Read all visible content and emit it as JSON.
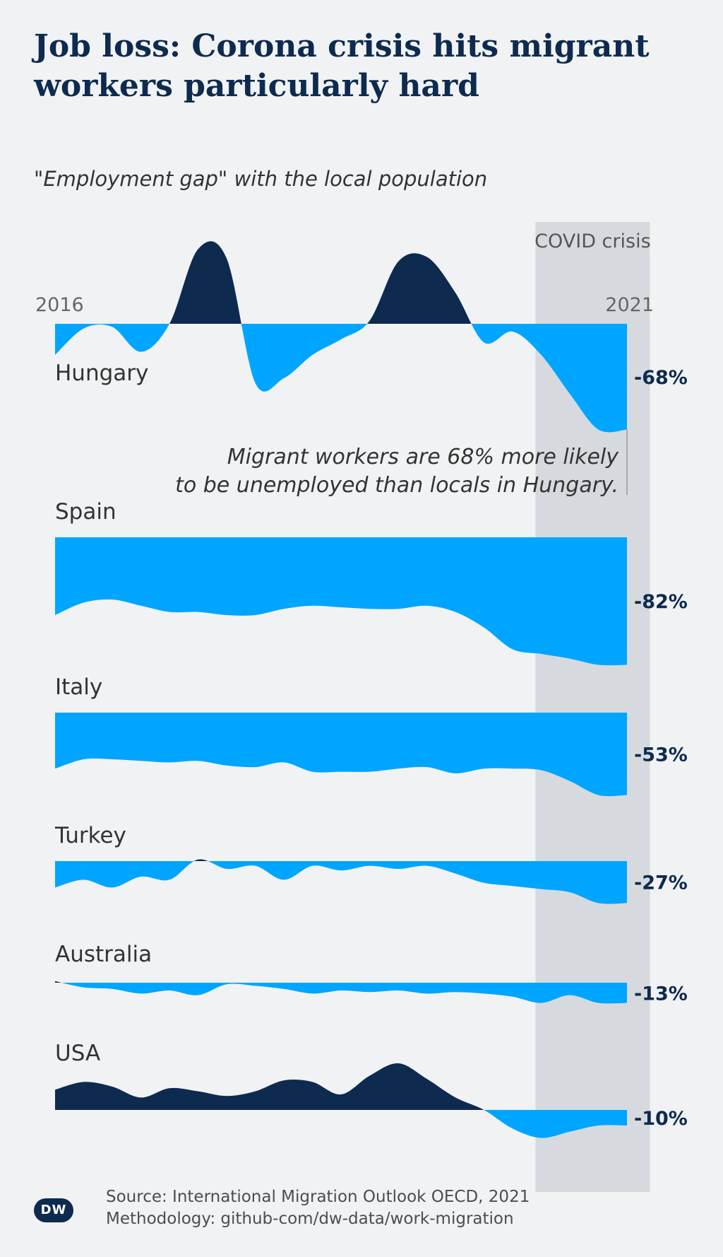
{
  "header": {
    "title": "Job loss: Corona crisis hits migrant workers particularly hard",
    "subtitle": "\"Employment gap\" with the local population"
  },
  "footer": {
    "source": "Source: International Migration Outlook OECD, 2021",
    "methodology": "Methodology: github-com/dw-data/work-migration",
    "logo_text": "DW"
  },
  "colors": {
    "negative": "#00a5ff",
    "positive": "#0e2a4f",
    "covid_band": "#d6dade",
    "background": "#f0f2f4"
  },
  "chart_data": {
    "type": "area",
    "x_start_label": "2016",
    "x_end_label": "2021",
    "x": [
      2016,
      2016.25,
      2016.5,
      2016.75,
      2017,
      2017.25,
      2017.5,
      2017.75,
      2018,
      2018.25,
      2018.5,
      2018.75,
      2019,
      2019.25,
      2019.5,
      2019.75,
      2020,
      2020.25,
      2020.5,
      2020.75,
      2021
    ],
    "covid_band_label": "COVID crisis",
    "covid_band_range": [
      2020.2,
      2021.2
    ],
    "annotation": [
      "Migrant workers are 68% more likely",
      "to be unemployed than locals in Hungary."
    ],
    "series": [
      {
        "name": "Hungary",
        "final_label": "-68%",
        "values": [
          -20,
          -3,
          -2,
          -18,
          0,
          48,
          42,
          -38,
          -35,
          -20,
          -10,
          2,
          40,
          43,
          20,
          -12,
          -5,
          -20,
          -45,
          -68,
          -68
        ]
      },
      {
        "name": "Spain",
        "final_label": "-82%",
        "values": [
          -50,
          -42,
          -40,
          -44,
          -48,
          -48,
          -50,
          -50,
          -46,
          -44,
          -45,
          -46,
          -46,
          -44,
          -48,
          -58,
          -72,
          -75,
          -78,
          -82,
          -82
        ]
      },
      {
        "name": "Italy",
        "final_label": "-53%",
        "values": [
          -36,
          -30,
          -30,
          -31,
          -32,
          -31,
          -34,
          -35,
          -32,
          -38,
          -38,
          -38,
          -36,
          -35,
          -39,
          -36,
          -36,
          -37,
          -44,
          -53,
          -53
        ]
      },
      {
        "name": "Turkey",
        "final_label": "-27%",
        "values": [
          -17,
          -12,
          -17,
          -10,
          -12,
          1,
          -5,
          -3,
          -12,
          -3,
          -6,
          -3,
          -5,
          -3,
          -8,
          -14,
          -16,
          -18,
          -20,
          -27,
          -27
        ]
      },
      {
        "name": "Australia",
        "final_label": "-13%",
        "values": [
          1,
          -3,
          -4,
          -7,
          -5,
          -8,
          -1,
          -2,
          -4,
          -7,
          -5,
          -6,
          -5,
          -7,
          -6,
          -7,
          -9,
          -13,
          -8,
          -13,
          -13
        ]
      },
      {
        "name": "USA",
        "final_label": "-10%",
        "values": [
          13,
          18,
          15,
          8,
          14,
          12,
          9,
          12,
          19,
          18,
          10,
          22,
          30,
          20,
          8,
          0,
          -12,
          -18,
          -14,
          -10,
          -10
        ]
      }
    ]
  }
}
